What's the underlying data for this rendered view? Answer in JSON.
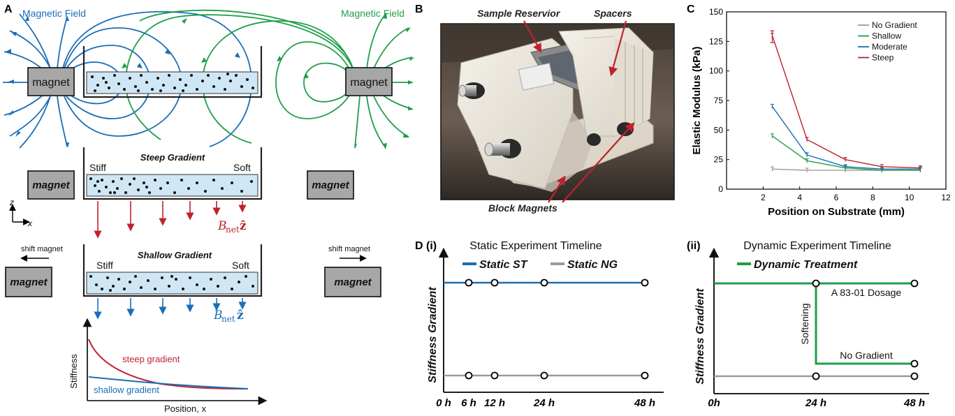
{
  "panels": {
    "A": "A",
    "B": "B",
    "C": "C",
    "D": "D (i)",
    "Dii": "(ii)"
  },
  "panel_a": {
    "magnetic_field_left": "Magnetic Field",
    "magnetic_field_right": "Magnetic Field",
    "magnet_top_left": "magnet",
    "magnet_top_right": "magnet",
    "magnet": "magnet",
    "steep_title": "Steep Gradient",
    "shallow_title": "Shallow Gradient",
    "stiff": "Stiff",
    "soft": "Soft",
    "bnet": "B",
    "bnet_sub": "net",
    "bnet_z": "ẑ",
    "shift_magnet": "shift magnet",
    "axis_z": "z",
    "axis_x": "x",
    "plot_ylabel": "Stiffness",
    "plot_xlabel": "Position, x",
    "steep_curve": "steep gradient",
    "shallow_curve": "shallow gradient",
    "colors": {
      "blue": "#1a6eb6",
      "green": "#1f9e4a",
      "red": "#c0222d",
      "gel": "#cfe6f5",
      "magnet": "#a7a7a7"
    }
  },
  "panel_b": {
    "sample_reservoir": "Sample Reservior",
    "spacers": "Spacers",
    "block_magnets": "Block Magnets"
  },
  "chart_data": {
    "type": "line",
    "xlabel": "Position on Substrate (mm)",
    "ylabel": "Elastic Modulus (kPa)",
    "xlim": [
      0,
      12
    ],
    "ylim": [
      0,
      150
    ],
    "xticks": [
      "2",
      "4",
      "6",
      "8",
      "10",
      "12"
    ],
    "yticks": [
      "0",
      "25",
      "50",
      "75",
      "100",
      "125",
      "150"
    ],
    "x": [
      2.5,
      4.4,
      6.5,
      8.5,
      10.6
    ],
    "legend_position": "top-right",
    "series": [
      {
        "name": "No Gradient",
        "color": "#9a9a9a",
        "values": [
          17,
          16,
          16,
          16,
          16
        ]
      },
      {
        "name": "Shallow",
        "color": "#1f9e4a",
        "values": [
          45,
          24,
          18,
          16,
          16
        ]
      },
      {
        "name": "Moderate",
        "color": "#1a6eb6",
        "values": [
          70,
          29,
          19,
          17,
          17
        ]
      },
      {
        "name": "Steep",
        "color": "#c0222d",
        "values": [
          130,
          42,
          25,
          19,
          18
        ]
      }
    ]
  },
  "panel_d1": {
    "title": "Static Experiment Timeline",
    "legend_static_st": "Static ST",
    "legend_static_ng": "Static NG",
    "ylabel": "Stiffness Gradient",
    "ticks": [
      "0 h",
      "6 h",
      "12 h",
      "24 h",
      "48 h"
    ]
  },
  "panel_d2": {
    "title": "Dynamic Experiment Timeline",
    "legend_dynamic": "Dynamic Treatment",
    "ylabel": "Stiffness Gradient",
    "dosage": "A 83-01 Dosage",
    "softening": "Softening",
    "no_gradient": "No Gradient",
    "ticks": [
      "0h",
      "24 h",
      "48 h"
    ]
  }
}
